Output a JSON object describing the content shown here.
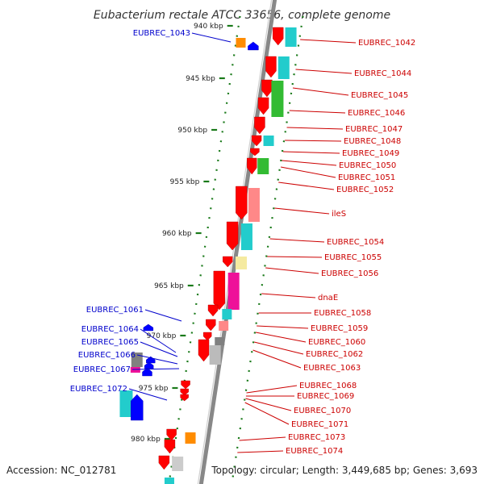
{
  "title": "Eubacterium rectale ATCC 33656, complete genome",
  "accession": "Accession: NC_012781",
  "topology": "Topology: circular; Length: 3,449,685 bp; Genes: 3,693",
  "colors": {
    "forward_label": "#0000cc",
    "reverse_label": "#cc0000",
    "backbone": "#888888",
    "tick": "#1a7a1a",
    "cds": "#ff0000",
    "blue_gene": "#0000ff",
    "orange": "#ff8c00",
    "cyan": "#22cccc",
    "green": "#33bb33",
    "pink": "#ff8888",
    "magenta": "#ee1199",
    "pale_yellow": "#f5eaa0",
    "gray": "#808080"
  },
  "ticks": [
    "940 kbp",
    "945 kbp",
    "950 kbp",
    "955 kbp",
    "960 kbp",
    "965 kbp",
    "970 kbp",
    "975 kbp",
    "980 kbp"
  ],
  "left_labels": [
    "EUBREC_1043",
    "EUBREC_1061",
    "EUBREC_1064",
    "EUBREC_1065",
    "EUBREC_1066",
    "EUBREC_1067",
    "EUBREC_1072"
  ],
  "right_labels": [
    "EUBREC_1042",
    "EUBREC_1044",
    "EUBREC_1045",
    "EUBREC_1046",
    "EUBREC_1047",
    "EUBREC_1048",
    "EUBREC_1049",
    "EUBREC_1050",
    "EUBREC_1051",
    "EUBREC_1052",
    "ileS",
    "EUBREC_1054",
    "EUBREC_1055",
    "EUBREC_1056",
    "dnaE",
    "EUBREC_1058",
    "EUBREC_1059",
    "EUBREC_1060",
    "EUBREC_1062",
    "EUBREC_1063",
    "EUBREC_1068",
    "EUBREC_1069",
    "EUBREC_1070",
    "EUBREC_1071",
    "EUBREC_1073",
    "EUBREC_1074"
  ]
}
